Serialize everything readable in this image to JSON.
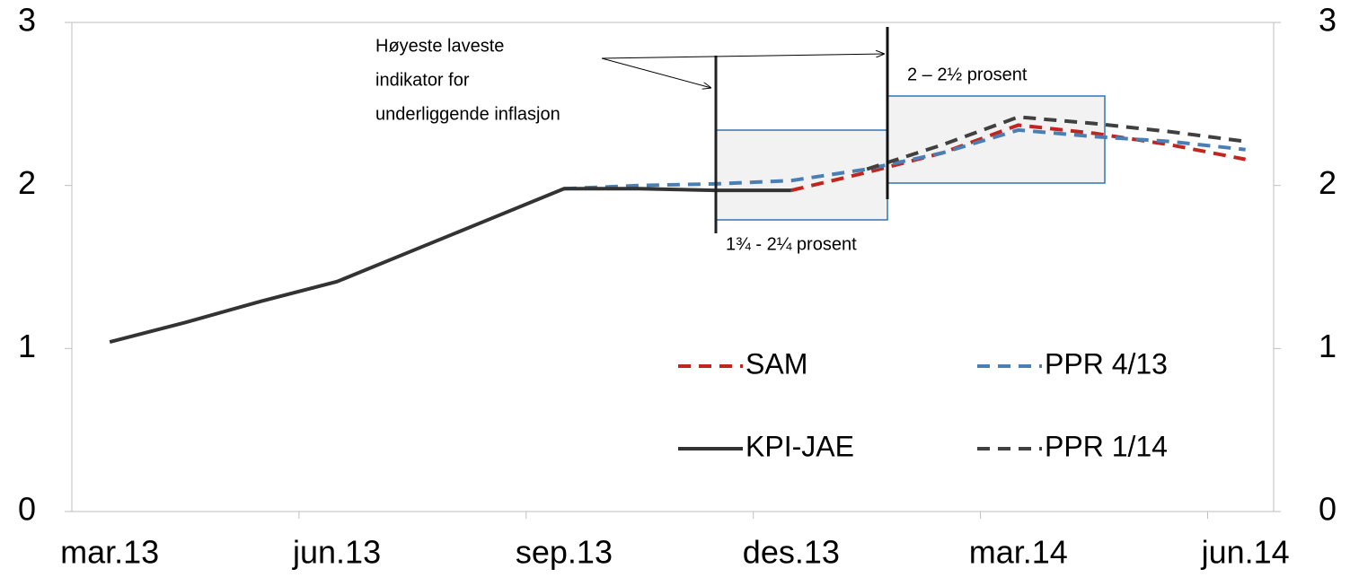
{
  "chart_data": {
    "type": "line",
    "categories": [
      "mar.13",
      null,
      null,
      "jun.13",
      null,
      null,
      "sep.13",
      null,
      null,
      "des.13",
      null,
      null,
      "mar.14",
      null,
      null,
      "jun.14"
    ],
    "series": [
      {
        "name": "SAM",
        "color": "#c0261f",
        "dash": true,
        "values": [
          null,
          null,
          null,
          null,
          null,
          null,
          null,
          null,
          null,
          1.97,
          2.08,
          2.2,
          2.37,
          2.32,
          2.25,
          2.16
        ]
      },
      {
        "name": "PPR 4/13",
        "color": "#4a7fb5",
        "dash": true,
        "values": [
          null,
          null,
          null,
          null,
          null,
          null,
          1.98,
          2.0,
          2.01,
          2.03,
          2.1,
          2.2,
          2.34,
          2.3,
          2.27,
          2.22
        ]
      },
      {
        "name": "KPI-JAE",
        "color": "#333333",
        "dash": false,
        "values": [
          1.04,
          1.16,
          1.29,
          1.41,
          1.6,
          1.79,
          1.98,
          1.98,
          1.97,
          1.97,
          null,
          null,
          null,
          null,
          null,
          null
        ]
      },
      {
        "name": "PPR 1/14",
        "color": "#404040",
        "dash": true,
        "values": [
          null,
          null,
          null,
          null,
          null,
          null,
          null,
          null,
          null,
          null,
          2.1,
          2.25,
          2.42,
          2.38,
          2.33,
          2.27
        ]
      }
    ],
    "ylim": [
      0,
      3
    ],
    "yticks": [
      0,
      1,
      2,
      3
    ],
    "y2lim": [
      0,
      3
    ],
    "y2ticks": [
      0,
      1,
      2,
      3
    ],
    "grid": false,
    "annotations": [
      "Høyeste laveste",
      "indikator for",
      "underliggende inflasjon",
      "2 – 2½ prosent",
      "1¾ - 2¼ prosent"
    ]
  }
}
